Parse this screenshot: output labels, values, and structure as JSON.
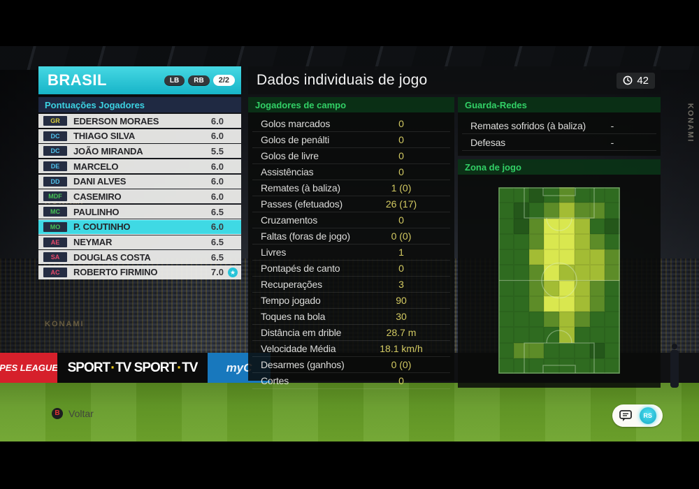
{
  "background": {
    "hoardings": {
      "konami_left_1": "KONAMI",
      "konami_left_2": "KONAMI",
      "konami_right": "KONAMI",
      "ad_red": "PES LEAGUE",
      "ad_sport_word": "SPORT",
      "ad_sport_sep": "·",
      "ad_tv_word": "TV",
      "ad_blue": "myC"
    }
  },
  "team_panel": {
    "team_name": "BRASIL",
    "nav_buttons": [
      "LB",
      "RB"
    ],
    "page_indicator": "2/2",
    "section_title": "Pontuações Jogadores",
    "players": [
      {
        "pos": "GR",
        "pos_color": "#d9cb3a",
        "name": "EDERSON MORAES",
        "rating": "6.0",
        "selected": false,
        "star": false
      },
      {
        "pos": "DC",
        "pos_color": "#4fc0ea",
        "name": "THIAGO SILVA",
        "rating": "6.0",
        "selected": false,
        "star": false
      },
      {
        "pos": "DC",
        "pos_color": "#4fc0ea",
        "name": "JOÃO MIRANDA",
        "rating": "5.5",
        "selected": false,
        "star": false
      },
      {
        "pos": "DE",
        "pos_color": "#4fc0ea",
        "name": "MARCELO",
        "rating": "6.0",
        "selected": false,
        "star": false
      },
      {
        "pos": "DD",
        "pos_color": "#4fc0ea",
        "name": "DANI ALVES",
        "rating": "6.0",
        "selected": false,
        "star": false
      },
      {
        "pos": "MDF",
        "pos_color": "#46c455",
        "name": "CASEMIRO",
        "rating": "6.0",
        "selected": false,
        "star": false
      },
      {
        "pos": "MC",
        "pos_color": "#46c455",
        "name": "PAULINHO",
        "rating": "6.5",
        "selected": false,
        "star": false
      },
      {
        "pos": "MO",
        "pos_color": "#46c455",
        "name": "P. COUTINHO",
        "rating": "6.0",
        "selected": true,
        "star": false
      },
      {
        "pos": "AE",
        "pos_color": "#e84a6a",
        "name": "NEYMAR",
        "rating": "6.5",
        "selected": false,
        "star": false
      },
      {
        "pos": "SA",
        "pos_color": "#e84a6a",
        "name": "DOUGLAS COSTA",
        "rating": "6.5",
        "selected": false,
        "star": false
      },
      {
        "pos": "AC",
        "pos_color": "#e84a6a",
        "name": "ROBERTO FIRMINO",
        "rating": "7.0",
        "selected": false,
        "star": true
      }
    ]
  },
  "main": {
    "title": "Dados individuais de jogo",
    "clock_value": "42",
    "field_stats": {
      "header": "Jogadores de campo",
      "rows": [
        [
          "Golos marcados",
          "0"
        ],
        [
          "Golos de penálti",
          "0"
        ],
        [
          "Golos de livre",
          "0"
        ],
        [
          "Assistências",
          "0"
        ],
        [
          "Remates (à baliza)",
          "1 (0)"
        ],
        [
          "Passes (efetuados)",
          "26 (17)"
        ],
        [
          "Cruzamentos",
          "0"
        ],
        [
          "Faltas (foras de jogo)",
          "0 (0)"
        ],
        [
          "Livres",
          "1"
        ],
        [
          "Pontapés de canto",
          "0"
        ],
        [
          "Recuperações",
          "3"
        ],
        [
          "Tempo jogado",
          "90"
        ],
        [
          "Toques na bola",
          "30"
        ],
        [
          "Distância em drible",
          "28.7 m"
        ],
        [
          "Velocidade Média",
          "18.1 km/h"
        ],
        [
          "Desarmes (ganhos)",
          "0 (0)"
        ],
        [
          "Cortes",
          "0"
        ]
      ]
    },
    "gk_stats": {
      "header": "Guarda-Redes",
      "rows": [
        [
          "Remates sofridos (à baliza)",
          "-"
        ],
        [
          "Defesas",
          "-"
        ]
      ]
    },
    "zone_header": "Zona de jogo"
  },
  "chart_data": {
    "type": "heatmap",
    "title": "Zona de jogo",
    "rows": 12,
    "cols": 8,
    "orientation": "vertical-pitch",
    "palette": [
      "#24571a",
      "#2f6b20",
      "#5d8c28",
      "#a3bc34",
      "#d9e74f"
    ],
    "matrix": [
      [
        1,
        1,
        0,
        1,
        2,
        1,
        1,
        1
      ],
      [
        1,
        0,
        1,
        2,
        3,
        2,
        2,
        1
      ],
      [
        1,
        0,
        2,
        4,
        4,
        3,
        1,
        0
      ],
      [
        1,
        1,
        2,
        4,
        4,
        3,
        2,
        1
      ],
      [
        1,
        1,
        3,
        4,
        4,
        3,
        3,
        2
      ],
      [
        1,
        1,
        2,
        4,
        3,
        3,
        3,
        2
      ],
      [
        1,
        1,
        2,
        3,
        4,
        3,
        2,
        1
      ],
      [
        1,
        1,
        2,
        4,
        4,
        3,
        2,
        1
      ],
      [
        1,
        1,
        1,
        2,
        3,
        2,
        1,
        1
      ],
      [
        1,
        1,
        1,
        1,
        3,
        1,
        1,
        1
      ],
      [
        1,
        2,
        2,
        1,
        1,
        1,
        0,
        1
      ],
      [
        1,
        1,
        1,
        1,
        1,
        1,
        1,
        1
      ]
    ]
  },
  "footer": {
    "back_button": "B",
    "back_label": "Voltar",
    "stick_label": "RS"
  }
}
